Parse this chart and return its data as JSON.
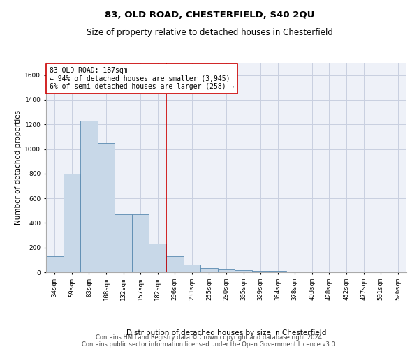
{
  "title": "83, OLD ROAD, CHESTERFIELD, S40 2QU",
  "subtitle": "Size of property relative to detached houses in Chesterfield",
  "xlabel": "Distribution of detached houses by size in Chesterfield",
  "ylabel": "Number of detached properties",
  "footnote1": "Contains HM Land Registry data © Crown copyright and database right 2024.",
  "footnote2": "Contains public sector information licensed under the Open Government Licence v3.0.",
  "annotation_line1": "83 OLD ROAD: 187sqm",
  "annotation_line2": "← 94% of detached houses are smaller (3,945)",
  "annotation_line3": "6% of semi-detached houses are larger (258) →",
  "highlight_bin_index": 6,
  "categories": [
    "34sqm",
    "59sqm",
    "83sqm",
    "108sqm",
    "132sqm",
    "157sqm",
    "182sqm",
    "206sqm",
    "231sqm",
    "255sqm",
    "280sqm",
    "305sqm",
    "329sqm",
    "354sqm",
    "378sqm",
    "403sqm",
    "428sqm",
    "452sqm",
    "477sqm",
    "501sqm",
    "526sqm"
  ],
  "values": [
    130,
    800,
    1230,
    1050,
    470,
    470,
    230,
    130,
    65,
    35,
    25,
    15,
    10,
    10,
    5,
    3,
    2,
    1,
    1,
    1,
    0
  ],
  "bar_color": "#c8d8e8",
  "bar_edge_color": "#5a8ab0",
  "highlight_line_color": "#cc0000",
  "annotation_box_edge_color": "#cc0000",
  "ylim": [
    0,
    1700
  ],
  "yticks": [
    0,
    200,
    400,
    600,
    800,
    1000,
    1200,
    1400,
    1600
  ],
  "grid_color": "#c8cfe0",
  "background_color": "#eef1f8",
  "fig_background": "#ffffff",
  "title_fontsize": 9.5,
  "subtitle_fontsize": 8.5,
  "axis_label_fontsize": 7.5,
  "tick_fontsize": 6.5,
  "annotation_fontsize": 7,
  "footnote_fontsize": 6
}
